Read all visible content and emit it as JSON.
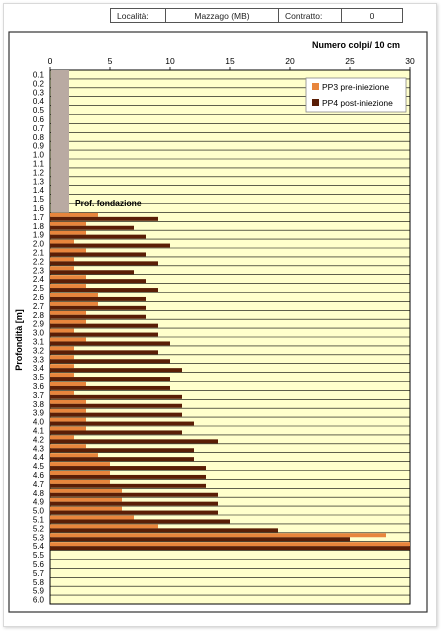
{
  "header": {
    "localita_label": "Località:",
    "localita_value": "Mazzago (MB)",
    "contratto_label": "Contratto:",
    "contratto_value": "0"
  },
  "chart_data": {
    "type": "bar",
    "orientation": "horizontal",
    "title": "",
    "xlabel": "Numero colpi/ 10 cm",
    "ylabel": "Profondità [m]",
    "xlim": [
      0,
      30
    ],
    "xticks": [
      0,
      5,
      10,
      15,
      20,
      25,
      30
    ],
    "ylim": [
      0.1,
      6.0
    ],
    "categories": [
      "0.1",
      "0.2",
      "0.3",
      "0.4",
      "0.5",
      "0.6",
      "0.7",
      "0.8",
      "0.9",
      "1.0",
      "1.1",
      "1.2",
      "1.3",
      "1.4",
      "1.5",
      "1.6",
      "1.7",
      "1.8",
      "1.9",
      "2.0",
      "2.1",
      "2.2",
      "2.3",
      "2.4",
      "2.5",
      "2.6",
      "2.7",
      "2.8",
      "2.9",
      "3.0",
      "3.1",
      "3.2",
      "3.3",
      "3.4",
      "3.5",
      "3.6",
      "3.7",
      "3.8",
      "3.9",
      "4.0",
      "4.1",
      "4.2",
      "4.3",
      "4.4",
      "4.5",
      "4.6",
      "4.7",
      "4.8",
      "4.9",
      "5.0",
      "5.1",
      "5.2",
      "5.3",
      "5.4",
      "5.5",
      "5.6",
      "5.7",
      "5.8",
      "5.9",
      "6.0"
    ],
    "series": [
      {
        "name": "PP3 pre-iniezione",
        "color": "#e8853c",
        "values": [
          null,
          null,
          null,
          null,
          null,
          null,
          null,
          null,
          null,
          null,
          null,
          null,
          null,
          null,
          null,
          null,
          4,
          3,
          3,
          2,
          3,
          2,
          2,
          3,
          3,
          4,
          4,
          3,
          3,
          2,
          3,
          2,
          2,
          2,
          2,
          3,
          2,
          3,
          3,
          3,
          3,
          2,
          3,
          4,
          5,
          5,
          5,
          6,
          6,
          6,
          7,
          9,
          28,
          30,
          null,
          null,
          null,
          null,
          null,
          null
        ]
      },
      {
        "name": "PP4 post-iniezione",
        "color": "#5a1e06",
        "values": [
          null,
          null,
          null,
          null,
          null,
          null,
          null,
          null,
          null,
          null,
          null,
          null,
          null,
          null,
          null,
          null,
          9,
          7,
          8,
          10,
          8,
          9,
          7,
          8,
          9,
          8,
          8,
          8,
          9,
          9,
          10,
          9,
          10,
          11,
          10,
          10,
          11,
          11,
          11,
          12,
          11,
          14,
          12,
          12,
          13,
          13,
          13,
          14,
          14,
          14,
          15,
          19,
          25,
          30,
          null,
          null,
          null,
          null,
          null,
          null
        ]
      }
    ],
    "foundation_label": "Prof. fondazione",
    "foundation_depth": 1.6,
    "grid": true,
    "legend_position": "top-right",
    "plot_background": "#ffffcc",
    "soil_column_color": "#b9aaa2"
  }
}
